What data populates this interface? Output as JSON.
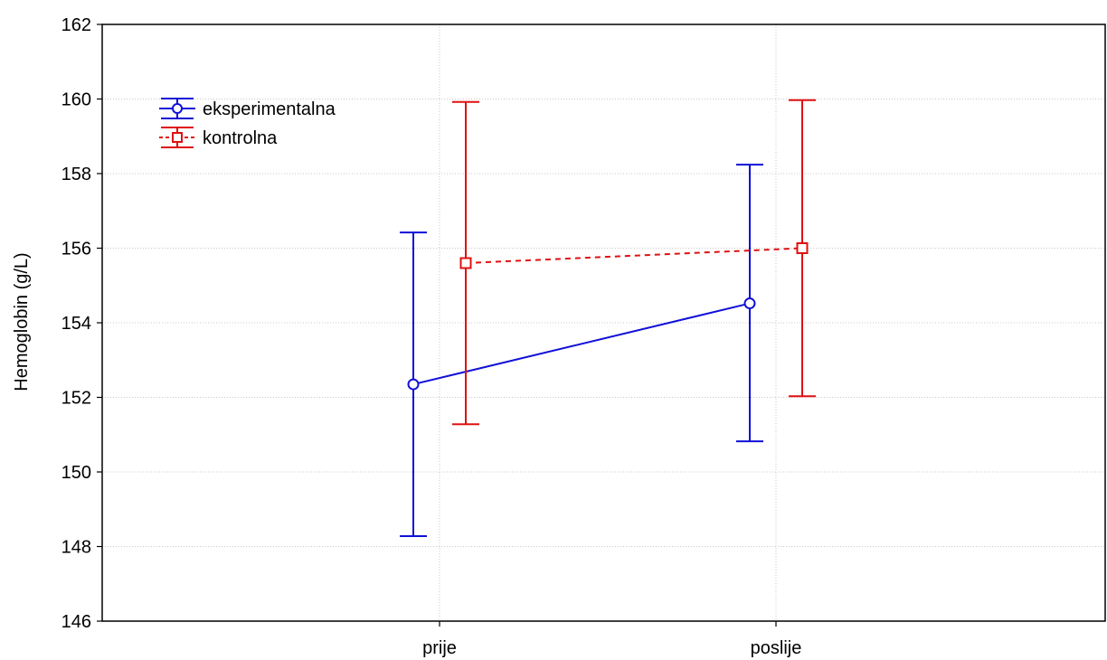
{
  "chart_data": {
    "type": "line",
    "title": "",
    "xlabel": "",
    "ylabel": "Hemoglobin (g/L)",
    "categories": [
      "prije",
      "poslije"
    ],
    "ylim": [
      146,
      162
    ],
    "yticks": [
      146,
      148,
      150,
      152,
      154,
      156,
      158,
      160,
      162
    ],
    "grid": true,
    "legend_position": "top-left",
    "series": [
      {
        "name": "eksperimentalna",
        "color": "#1010d8",
        "line_style": "solid",
        "marker": "circle",
        "values": [
          152.35,
          154.52
        ],
        "error_low": [
          148.28,
          150.82
        ],
        "error_high": [
          156.42,
          158.24
        ]
      },
      {
        "name": "kontrolna",
        "color": "#e01010",
        "line_style": "dashed",
        "marker": "square",
        "values": [
          155.6,
          156.0
        ],
        "error_low": [
          151.28,
          152.03
        ],
        "error_high": [
          159.92,
          159.97
        ]
      }
    ]
  }
}
